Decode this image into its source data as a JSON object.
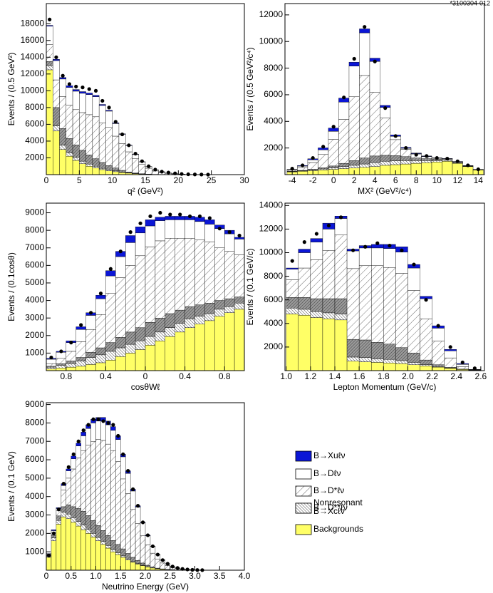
{
  "id_label": "*3100304-012",
  "legend": [
    {
      "label": [
        "B→Xuℓν"
      ],
      "fill": "#0b16d6"
    },
    {
      "label": [
        "B→Dℓν"
      ],
      "fill": "#ffffff"
    },
    {
      "label": [
        "B→D*ℓν"
      ],
      "fill": "hatch"
    },
    {
      "label": [
        "B→D**ℓν"
      ],
      "fill": "hatch-dark"
    },
    {
      "label": [
        "Nonresonant",
        "B→Xcℓν"
      ],
      "fill": "hatch-dense"
    },
    {
      "label": [
        "Backgrounds"
      ],
      "fill": "#ffff66"
    }
  ],
  "chart_data": [
    {
      "type": "histogram",
      "x_label": "q² (GeV²)",
      "y_label": "Events / (0.5 GeV²)",
      "xlim": [
        0,
        30
      ],
      "ylim": [
        0,
        20400
      ],
      "xticks": [
        0,
        5,
        10,
        15,
        20,
        25,
        30
      ],
      "yticks": [
        2000,
        4000,
        6000,
        8000,
        10000,
        12000,
        14000,
        16000,
        18000
      ],
      "bins": [
        0,
        1,
        2,
        3,
        4,
        5,
        6,
        7,
        8,
        9,
        10,
        11,
        12,
        13,
        14,
        15,
        16,
        17,
        18,
        19,
        20,
        21,
        22,
        23,
        24,
        25
      ],
      "stack": [
        [
          100,
          150,
          180,
          200,
          200,
          200,
          180,
          150,
          120,
          100,
          80,
          60,
          50,
          40,
          30,
          20,
          15,
          10,
          6,
          4,
          3,
          2,
          1,
          1,
          0
        ],
        [
          2200,
          2300,
          2100,
          2100,
          2200,
          2300,
          2400,
          2400,
          2100,
          1900,
          1500,
          1100,
          750,
          500,
          300,
          180,
          130,
          60,
          40,
          25,
          12,
          5,
          2,
          1,
          0
        ],
        [
          2000,
          3300,
          3800,
          4000,
          4200,
          4500,
          4800,
          5000,
          4700,
          4600,
          3800,
          3200,
          2400,
          1700,
          1100,
          700,
          400,
          250,
          140,
          80,
          40,
          20,
          10,
          3,
          0
        ],
        [
          500,
          2200,
          2000,
          1700,
          1500,
          1300,
          1100,
          900,
          700,
          500,
          350,
          200,
          100,
          50,
          20,
          10,
          5,
          0,
          0,
          0,
          0,
          0,
          0,
          0,
          0
        ],
        [
          500,
          600,
          500,
          400,
          350,
          300,
          250,
          200,
          150,
          120,
          90,
          60,
          40,
          20,
          10,
          5,
          0,
          0,
          0,
          0,
          0,
          0,
          0,
          0,
          0
        ],
        [
          12500,
          5200,
          3000,
          2200,
          1700,
          1300,
          1000,
          800,
          600,
          450,
          350,
          250,
          180,
          120,
          80,
          50,
          30,
          20,
          10,
          5,
          3,
          2,
          1,
          0,
          0
        ]
      ],
      "points": [
        18500,
        14000,
        11800,
        10800,
        10500,
        10400,
        10200,
        10000,
        8800,
        8000,
        6300,
        4800,
        3500,
        2500,
        1600,
        1000,
        600,
        350,
        250,
        150,
        80,
        40,
        20,
        10,
        0
      ]
    },
    {
      "type": "histogram",
      "x_label": "MX² (GeV²/c⁴)",
      "y_label": "Events / (0.5 GeV²/c⁴)",
      "xlim": [
        -4.7,
        14.6
      ],
      "ylim": [
        0,
        12850
      ],
      "xticks": [
        -4,
        -2,
        0,
        2,
        4,
        6,
        8,
        10,
        12,
        14
      ],
      "yticks": [
        2000,
        4000,
        6000,
        8000,
        10000,
        12000
      ],
      "bins": [
        -4.5,
        -3.5,
        -2.5,
        -1.5,
        -0.5,
        0.5,
        1.5,
        2.5,
        3.5,
        4.5,
        5.5,
        6.5,
        7.5,
        8.5,
        9.5,
        10.5,
        11.5,
        12.5,
        13.5,
        14.5
      ],
      "stack": [
        [
          20,
          40,
          80,
          150,
          250,
          300,
          300,
          300,
          250,
          150,
          100,
          60,
          40,
          30,
          20,
          15,
          10,
          5,
          5
        ],
        [
          40,
          120,
          200,
          350,
          600,
          1300,
          2300,
          3200,
          2300,
          800,
          250,
          80,
          30,
          20,
          10,
          5,
          5,
          0,
          0
        ],
        [
          80,
          200,
          500,
          1000,
          2000,
          3300,
          4800,
          6200,
          4800,
          2800,
          1200,
          550,
          300,
          150,
          80,
          50,
          30,
          20,
          10
        ],
        [
          20,
          30,
          50,
          80,
          150,
          250,
          350,
          450,
          500,
          450,
          400,
          300,
          200,
          150,
          100,
          60,
          40,
          20,
          10
        ],
        [
          30,
          40,
          60,
          80,
          100,
          150,
          200,
          250,
          300,
          300,
          280,
          250,
          200,
          150,
          100,
          80,
          50,
          30,
          20
        ],
        [
          200,
          250,
          300,
          350,
          400,
          450,
          500,
          550,
          600,
          700,
          750,
          800,
          850,
          900,
          950,
          1000,
          850,
          600,
          350
        ]
      ],
      "points": [
        450,
        700,
        1250,
        2100,
        3600,
        5800,
        8700,
        11100,
        8500,
        5000,
        2900,
        2000,
        1500,
        1400,
        1250,
        1200,
        1000,
        700,
        400
      ]
    },
    {
      "type": "histogram",
      "x_label": "cosθWℓ",
      "y_label": "Events / (0.1cosθ)",
      "xlim": [
        -1,
        1
      ],
      "ylim": [
        0,
        9550
      ],
      "xticks": [
        {
          "value": -0.8,
          "label": "0.8"
        },
        {
          "value": -0.4,
          "label": "0.4"
        },
        0,
        0.4,
        0.8
      ],
      "yticks": [
        1000,
        2000,
        3000,
        4000,
        5000,
        6000,
        7000,
        8000,
        9000
      ],
      "bins": [
        -1,
        -0.9,
        -0.8,
        -0.7,
        -0.6,
        -0.5,
        -0.4,
        -0.3,
        -0.2,
        -0.1,
        0,
        0.1,
        0.2,
        0.3,
        0.4,
        0.5,
        0.6,
        0.7,
        0.8,
        0.9,
        1
      ],
      "stack": [
        [
          50,
          50,
          100,
          150,
          150,
          200,
          300,
          300,
          400,
          350,
          350,
          200,
          200,
          200,
          200,
          250,
          250,
          200,
          200,
          100
        ],
        [
          250,
          350,
          500,
          700,
          800,
          900,
          1000,
          1200,
          1300,
          1300,
          1200,
          1150,
          1050,
          1050,
          1050,
          1050,
          1000,
          1100,
          1000,
          900
        ],
        [
          150,
          300,
          550,
          900,
          1300,
          1900,
          2800,
          3400,
          3800,
          4100,
          4300,
          4400,
          4300,
          4100,
          3900,
          3700,
          3500,
          3000,
          2700,
          2400
        ],
        [
          50,
          100,
          150,
          200,
          300,
          400,
          500,
          600,
          700,
          750,
          800,
          800,
          800,
          750,
          700,
          650,
          600,
          500,
          450,
          350
        ],
        [
          100,
          150,
          200,
          300,
          400,
          450,
          500,
          500,
          500,
          500,
          500,
          500,
          500,
          500,
          500,
          450,
          400,
          400,
          350,
          350
        ],
        [
          100,
          150,
          200,
          250,
          350,
          450,
          600,
          800,
          1000,
          1200,
          1450,
          1700,
          1950,
          2200,
          2450,
          2650,
          2850,
          3100,
          3300,
          3500
        ]
      ],
      "points": [
        750,
        1100,
        1600,
        2600,
        3300,
        4400,
        5800,
        6800,
        7900,
        8400,
        8800,
        9000,
        8900,
        8900,
        8800,
        8800,
        8700,
        8100,
        7900,
        7700
      ]
    },
    {
      "type": "histogram",
      "x_label": "Lepton Momentum (GeV/c)",
      "y_label": "Events / (0.1 GeV/c)",
      "xlim": [
        0.99,
        2.63
      ],
      "ylim": [
        0,
        14200
      ],
      "xticks": [
        {
          "value": 1,
          "label": "1.0"
        },
        1.2,
        1.4,
        1.6,
        1.8,
        {
          "value": 2,
          "label": "2.0"
        },
        2.2,
        2.4,
        2.6
      ],
      "yticks": [
        2000,
        4000,
        6000,
        8000,
        10000,
        12000,
        14000
      ],
      "bins": [
        1,
        1.1,
        1.2,
        1.3,
        1.4,
        1.5,
        1.6,
        1.7,
        1.8,
        1.9,
        2,
        2.1,
        2.2,
        2.3,
        2.4,
        2.5,
        2.6
      ],
      "stack": [
        [
          100,
          300,
          300,
          500,
          200,
          150,
          200,
          300,
          350,
          450,
          300,
          200,
          200,
          120,
          70,
          5
        ],
        [
          900,
          1300,
          1500,
          1800,
          1400,
          1500,
          1500,
          1500,
          1600,
          1800,
          1900,
          1700,
          1100,
          600,
          200,
          15
        ],
        [
          1500,
          2500,
          3300,
          4100,
          5400,
          6000,
          6300,
          6500,
          6500,
          6300,
          5300,
          3500,
          2000,
          800,
          200,
          20
        ],
        [
          900,
          1000,
          1100,
          1200,
          1300,
          1500,
          1500,
          1400,
          1300,
          1100,
          800,
          400,
          150,
          50,
          20,
          5
        ],
        [
          500,
          500,
          500,
          500,
          500,
          350,
          350,
          300,
          300,
          250,
          200,
          100,
          50,
          30,
          10,
          5
        ],
        [
          4800,
          4700,
          4500,
          4400,
          4300,
          800,
          750,
          700,
          650,
          600,
          500,
          400,
          300,
          200,
          100,
          50
        ]
      ],
      "points": [
        9300,
        10900,
        11600,
        12300,
        13000,
        10200,
        10500,
        10800,
        10600,
        10200,
        9000,
        6000,
        3800,
        2000,
        700,
        200
      ]
    },
    {
      "type": "histogram",
      "x_label": "Neutrino Energy (GeV)",
      "y_label": "Events / (0.1 GeV)",
      "xlim": [
        0,
        4
      ],
      "ylim": [
        0,
        9100
      ],
      "xticks": [
        0,
        0.5,
        {
          "value": 1,
          "label": "1.0"
        },
        1.5,
        {
          "value": 2,
          "label": "2.0"
        },
        2.5,
        {
          "value": 3,
          "label": "3.0"
        },
        3.5,
        {
          "value": 4,
          "label": "4.0"
        }
      ],
      "yticks": [
        1000,
        2000,
        3000,
        4000,
        5000,
        6000,
        7000,
        8000,
        9000
      ],
      "bins": [
        0,
        0.1,
        0.2,
        0.3,
        0.4,
        0.5,
        0.6,
        0.7,
        0.8,
        0.9,
        1,
        1.1,
        1.2,
        1.3,
        1.4,
        1.5,
        1.6,
        1.7,
        1.8,
        1.9,
        2,
        2.1,
        2.2,
        2.3,
        2.4,
        2.5,
        2.6,
        2.7,
        2.8,
        2.9,
        3,
        3.1,
        3.2
      ],
      "stack": [
        [
          20,
          50,
          50,
          100,
          100,
          150,
          150,
          200,
          200,
          200,
          200,
          200,
          200,
          200,
          200,
          140,
          140,
          100,
          70,
          30,
          30,
          15,
          17,
          8,
          4,
          5,
          2,
          2,
          0,
          0,
          0,
          0
        ],
        [
          30,
          100,
          100,
          250,
          400,
          550,
          650,
          800,
          900,
          1000,
          1000,
          1050,
          1050,
          1100,
          1200,
          1200,
          1100,
          1000,
          900,
          700,
          500,
          360,
          220,
          150,
          95,
          50,
          35,
          16,
          10,
          5,
          2,
          2
        ],
        [
          50,
          150,
          300,
          900,
          1450,
          2050,
          2750,
          3300,
          3830,
          4300,
          4670,
          4890,
          4960,
          4880,
          4500,
          3800,
          3250,
          2600,
          2000,
          1480,
          1100,
          750,
          500,
          320,
          210,
          120,
          72,
          45,
          26,
          13,
          7,
          3
        ],
        [
          50,
          150,
          250,
          300,
          500,
          600,
          700,
          750,
          750,
          700,
          650,
          600,
          550,
          500,
          450,
          380,
          300,
          230,
          170,
          120,
          80,
          50,
          30,
          20,
          10,
          5,
          3,
          2,
          1,
          0,
          0,
          0
        ],
        [
          50,
          150,
          200,
          250,
          250,
          250,
          250,
          250,
          220,
          200,
          180,
          160,
          140,
          120,
          100,
          80,
          60,
          40,
          30,
          20,
          10,
          5,
          3,
          2,
          1,
          0,
          0,
          0,
          0,
          0,
          0,
          0
        ],
        [
          700,
          1600,
          2500,
          2900,
          2800,
          2600,
          2400,
          2200,
          2000,
          1800,
          1600,
          1400,
          1200,
          1000,
          850,
          700,
          550,
          430,
          330,
          250,
          180,
          120,
          80,
          50,
          30,
          20,
          10,
          5,
          3,
          2,
          1,
          0
        ]
      ],
      "points": [
        800,
        2000,
        3300,
        4700,
        5600,
        6300,
        7000,
        7600,
        7900,
        8200,
        8200,
        8100,
        8000,
        7900,
        7300,
        6300,
        5400,
        4400,
        3500,
        2600,
        1900,
        1300,
        850,
        550,
        350,
        200,
        120,
        70,
        40,
        20,
        10,
        5
      ]
    }
  ]
}
